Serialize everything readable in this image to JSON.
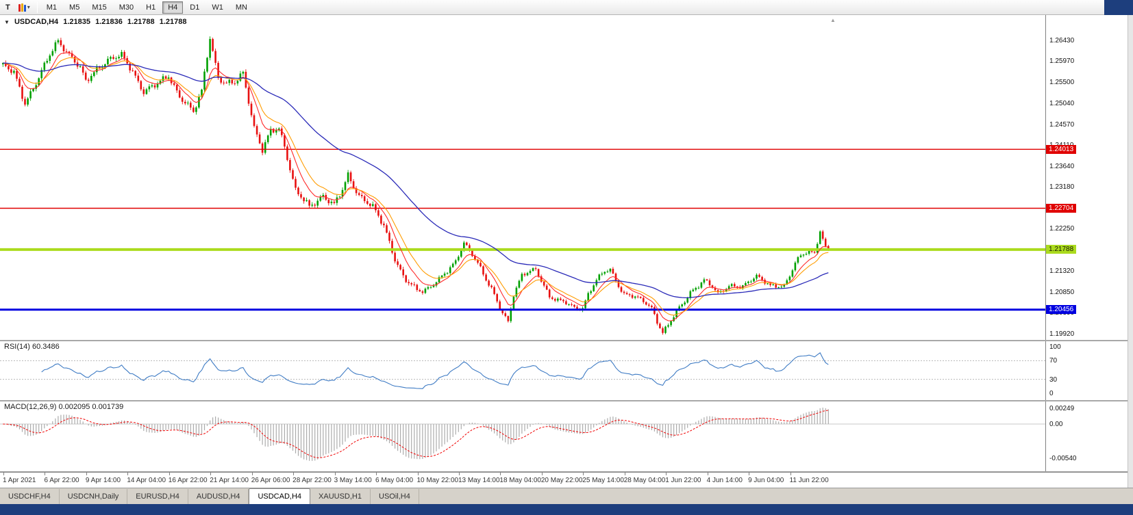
{
  "icons": {
    "collapse": "▼",
    "dropdown_caret": "▾",
    "chart_shift_marker": "▲"
  },
  "toolbar": {
    "type_tool_label": "T",
    "timeframes": [
      "M1",
      "M5",
      "M15",
      "M30",
      "H1",
      "H4",
      "D1",
      "W1",
      "MN"
    ],
    "active_timeframe": "H4"
  },
  "chart_data": {
    "type": "candlestick",
    "symbol": "USDCAD",
    "timeframe": "H4",
    "title": {
      "symbol": "USDCAD,H4",
      "open": "1.21835",
      "high": "1.21836",
      "low": "1.21788",
      "close": "1.21788"
    },
    "price_axis": {
      "ticks": [
        "1.26430",
        "1.25970",
        "1.25500",
        "1.25040",
        "1.24570",
        "1.24110",
        "1.23640",
        "1.23180",
        "1.22710",
        "1.22250",
        "1.21780",
        "1.21320",
        "1.20850",
        "1.20390",
        "1.19920"
      ],
      "top_price": 1.2643,
      "bottom_price": 1.1992
    },
    "horizontal_lines": [
      {
        "name": "resistance-line-1",
        "price": 1.24013,
        "tag": "1.24013",
        "color": "#E00000",
        "tag_bg": "#E00000",
        "tag_fg": "#FFFFFF",
        "thickness": 1.4
      },
      {
        "name": "resistance-line-2",
        "price": 1.22704,
        "tag": "1.22704",
        "color": "#E00000",
        "tag_bg": "#E00000",
        "tag_fg": "#FFFFFF",
        "thickness": 1.4
      },
      {
        "name": "support-line-green",
        "price": 1.21788,
        "tag": "1.21788",
        "color": "#ABDB1E",
        "tag_bg": "#ABDB1E",
        "tag_fg": "#1A1A00",
        "thickness": 4
      },
      {
        "name": "support-line-blue",
        "price": 1.20456,
        "tag": "1.20456",
        "color": "#0000E0",
        "tag_bg": "#0000E0",
        "tag_fg": "#FFFFFF",
        "thickness": 3
      }
    ],
    "candle_count": 300,
    "price_path_anchors": [
      [
        0,
        1.259
      ],
      [
        5,
        1.257
      ],
      [
        9,
        1.2505
      ],
      [
        14,
        1.256
      ],
      [
        18,
        1.261
      ],
      [
        21,
        1.2643
      ],
      [
        24,
        1.262
      ],
      [
        26,
        1.2605
      ],
      [
        29,
        1.258
      ],
      [
        31,
        1.255
      ],
      [
        35,
        1.258
      ],
      [
        39,
        1.26
      ],
      [
        44,
        1.2608
      ],
      [
        48,
        1.2575
      ],
      [
        52,
        1.253
      ],
      [
        57,
        1.2545
      ],
      [
        61,
        1.2565
      ],
      [
        65,
        1.252
      ],
      [
        70,
        1.2482
      ],
      [
        73,
        1.253
      ],
      [
        76,
        1.2652
      ],
      [
        79,
        1.256
      ],
      [
        82,
        1.2545
      ],
      [
        85,
        1.2548
      ],
      [
        88,
        1.2572
      ],
      [
        92,
        1.245
      ],
      [
        95,
        1.2398
      ],
      [
        98,
        1.244
      ],
      [
        101,
        1.2448
      ],
      [
        103,
        1.241
      ],
      [
        107,
        1.231
      ],
      [
        112,
        1.2272
      ],
      [
        117,
        1.23
      ],
      [
        121,
        1.2278
      ],
      [
        124,
        1.231
      ],
      [
        126,
        1.2342
      ],
      [
        128,
        1.232
      ],
      [
        130,
        1.23
      ],
      [
        133,
        1.2285
      ],
      [
        135,
        1.2272
      ],
      [
        139,
        1.223
      ],
      [
        143,
        1.216
      ],
      [
        146,
        1.212
      ],
      [
        148,
        1.2105
      ],
      [
        151,
        1.2088
      ],
      [
        153,
        1.2085
      ],
      [
        156,
        1.2098
      ],
      [
        158,
        1.211
      ],
      [
        162,
        1.213
      ],
      [
        165,
        1.215
      ],
      [
        168,
        1.2195
      ],
      [
        171,
        1.217
      ],
      [
        173,
        1.215
      ],
      [
        176,
        1.211
      ],
      [
        178,
        1.209
      ],
      [
        181,
        1.205
      ],
      [
        184,
        1.202
      ],
      [
        186,
        1.208
      ],
      [
        189,
        1.212
      ],
      [
        192,
        1.213
      ],
      [
        194,
        1.2135
      ],
      [
        197,
        1.21
      ],
      [
        199,
        1.2075
      ],
      [
        202,
        1.2065
      ],
      [
        205,
        1.206
      ],
      [
        208,
        1.205
      ],
      [
        211,
        1.205
      ],
      [
        213,
        1.208
      ],
      [
        216,
        1.211
      ],
      [
        219,
        1.213
      ],
      [
        221,
        1.2135
      ],
      [
        224,
        1.21
      ],
      [
        226,
        1.208
      ],
      [
        229,
        1.2075
      ],
      [
        231,
        1.207
      ],
      [
        234,
        1.206
      ],
      [
        236,
        1.205
      ],
      [
        238,
        1.202
      ],
      [
        240,
        1.1995
      ],
      [
        242,
        1.201
      ],
      [
        245,
        1.204
      ],
      [
        248,
        1.2065
      ],
      [
        250,
        1.2085
      ],
      [
        253,
        1.21
      ],
      [
        255,
        1.211
      ],
      [
        258,
        1.2095
      ],
      [
        260,
        1.208
      ],
      [
        262,
        1.209
      ],
      [
        264,
        1.21
      ],
      [
        267,
        1.2098
      ],
      [
        269,
        1.2095
      ],
      [
        272,
        1.211
      ],
      [
        274,
        1.212
      ],
      [
        277,
        1.211
      ],
      [
        279,
        1.21
      ],
      [
        282,
        1.2096
      ],
      [
        284,
        1.2095
      ],
      [
        286,
        1.212
      ],
      [
        288,
        1.215
      ],
      [
        290,
        1.2168
      ],
      [
        292,
        1.2175
      ],
      [
        294,
        1.2172
      ],
      [
        295,
        1.217
      ],
      [
        297,
        1.2218
      ],
      [
        298,
        1.22
      ],
      [
        299,
        1.2185
      ],
      [
        300,
        1.21788
      ]
    ],
    "moving_averages": [
      {
        "name": "ma-fast",
        "period": 8,
        "color": "#FF2A2A"
      },
      {
        "name": "ma-mid",
        "period": 14,
        "color": "#FF9C00"
      },
      {
        "name": "ma-slow",
        "period": 55,
        "color": "#2A2AB8"
      }
    ],
    "indicators": {
      "rsi": {
        "label": "RSI(14) 60.3486",
        "period": 14,
        "value": 60.3486,
        "axis_ticks": [
          "100",
          "70",
          "30",
          "0"
        ],
        "levels": [
          70,
          30
        ],
        "line_color": "#3E7BC4"
      },
      "macd": {
        "label": "MACD(12,26,9) 0.002095 0.001739",
        "fast": 12,
        "slow": 26,
        "signal": 9,
        "value": 0.002095,
        "signal_value": 0.001739,
        "axis_ticks": [
          "0.00249",
          "0.00",
          "-0.00540"
        ],
        "hist_color": "#ABABAB",
        "signal_color": "#F00000"
      }
    },
    "x_axis_labels": [
      "1 Apr 2021",
      "6 Apr 22:00",
      "9 Apr 14:00",
      "14 Apr 04:00",
      "16 Apr 22:00",
      "21 Apr 14:00",
      "26 Apr 06:00",
      "28 Apr 22:00",
      "3 May 14:00",
      "6 May 04:00",
      "10 May 22:00",
      "13 May 14:00",
      "18 May 04:00",
      "20 May 22:00",
      "25 May 14:00",
      "28 May 04:00",
      "1 Jun 22:00",
      "4 Jun 14:00",
      "9 Jun 04:00",
      "11 Jun 22:00"
    ],
    "colors": {
      "bull": "#00A000",
      "bear": "#E81010",
      "background": "#FFFFFF"
    }
  },
  "tabs": {
    "items": [
      "USDCHF,H4",
      "USDCNH,Daily",
      "EURUSD,H4",
      "AUDUSD,H4",
      "USDCAD,H4",
      "XAUUSD,H1",
      "USOil,H4"
    ],
    "active_index": 4
  }
}
